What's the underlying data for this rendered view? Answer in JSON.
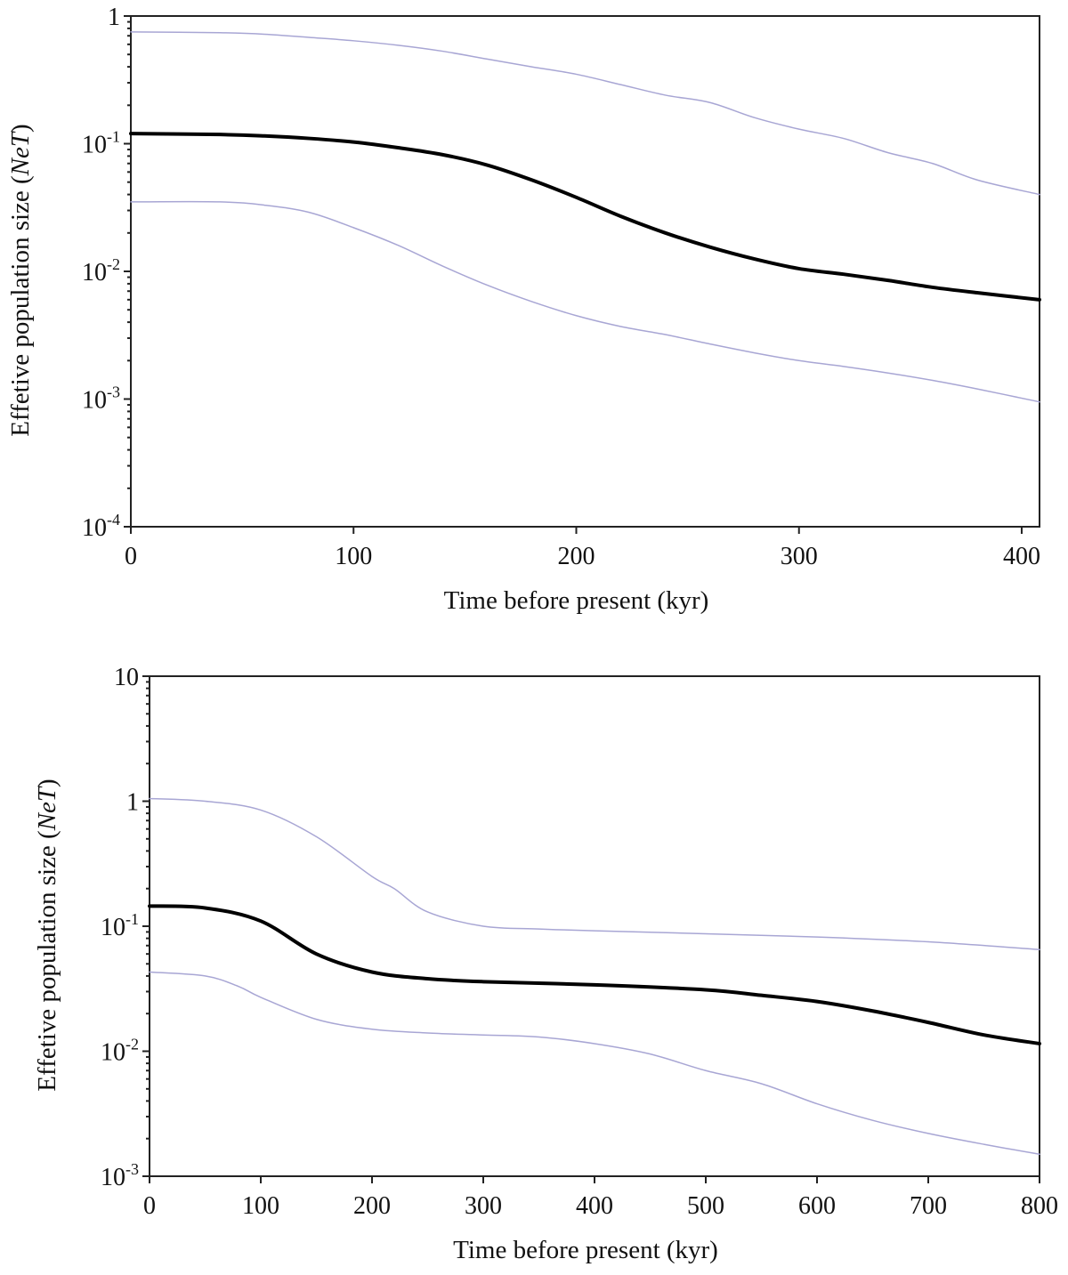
{
  "chart_data": [
    {
      "type": "line",
      "title": "",
      "xlabel": "Time before present (kyr)",
      "ylabel": "Effetive population size (",
      "ylabel_italic": "NeT",
      "ylabel_close": ")",
      "y_scale": "log",
      "xlim": [
        0,
        408
      ],
      "ylim": [
        0.0001,
        1
      ],
      "x_ticks": [
        0,
        100,
        200,
        300,
        400
      ],
      "x_tick_labels": [
        "0",
        "100",
        "200",
        "300",
        "400"
      ],
      "y_ticks": [
        {
          "value": 1,
          "base": "1",
          "exp": ""
        },
        {
          "value": 0.1,
          "base": "10",
          "exp": "-1"
        },
        {
          "value": 0.01,
          "base": "10",
          "exp": "-2"
        },
        {
          "value": 0.001,
          "base": "10",
          "exp": "-3"
        },
        {
          "value": 0.0001,
          "base": "10",
          "exp": "-4"
        }
      ],
      "grid": false,
      "series": [
        {
          "role": "upper",
          "color": "#a8a6d4",
          "width": 1.5,
          "x": [
            0,
            40,
            60,
            80,
            100,
            120,
            140,
            160,
            180,
            200,
            220,
            240,
            260,
            280,
            300,
            320,
            340,
            360,
            380,
            408
          ],
          "y": [
            0.75,
            0.74,
            0.72,
            0.68,
            0.64,
            0.59,
            0.53,
            0.46,
            0.4,
            0.35,
            0.29,
            0.24,
            0.21,
            0.16,
            0.13,
            0.11,
            0.085,
            0.07,
            0.052,
            0.04
          ]
        },
        {
          "role": "median",
          "color": "#000000",
          "width": 4,
          "x": [
            0,
            40,
            60,
            80,
            100,
            120,
            140,
            160,
            180,
            200,
            220,
            240,
            260,
            280,
            300,
            320,
            340,
            360,
            380,
            408
          ],
          "y": [
            0.12,
            0.118,
            0.115,
            0.11,
            0.103,
            0.093,
            0.082,
            0.068,
            0.052,
            0.038,
            0.027,
            0.02,
            0.0155,
            0.0125,
            0.0105,
            0.0095,
            0.0085,
            0.0075,
            0.0068,
            0.006
          ]
        },
        {
          "role": "lower",
          "color": "#a8a6d4",
          "width": 1.5,
          "x": [
            0,
            40,
            60,
            80,
            100,
            120,
            140,
            160,
            180,
            200,
            220,
            240,
            260,
            280,
            300,
            320,
            340,
            360,
            380,
            408
          ],
          "y": [
            0.035,
            0.035,
            0.033,
            0.029,
            0.022,
            0.016,
            0.011,
            0.0078,
            0.0058,
            0.0045,
            0.0037,
            0.0032,
            0.0027,
            0.0023,
            0.002,
            0.0018,
            0.0016,
            0.0014,
            0.0012,
            0.00095
          ]
        }
      ]
    },
    {
      "type": "line",
      "title": "",
      "xlabel": "Time before present (kyr)",
      "ylabel": "Effetive population size (",
      "ylabel_italic": "NeT",
      "ylabel_close": ")",
      "y_scale": "log",
      "xlim": [
        0,
        800
      ],
      "ylim": [
        0.001,
        10
      ],
      "x_ticks": [
        0,
        100,
        200,
        300,
        400,
        500,
        600,
        700,
        800
      ],
      "x_tick_labels": [
        "0",
        "100",
        "200",
        "300",
        "400",
        "500",
        "600",
        "700",
        "800"
      ],
      "y_ticks": [
        {
          "value": 10,
          "base": "10",
          "exp": ""
        },
        {
          "value": 1,
          "base": "1",
          "exp": ""
        },
        {
          "value": 0.1,
          "base": "10",
          "exp": "-1"
        },
        {
          "value": 0.01,
          "base": "10",
          "exp": "-2"
        },
        {
          "value": 0.001,
          "base": "10",
          "exp": "-3"
        }
      ],
      "grid": false,
      "series": [
        {
          "role": "upper",
          "color": "#a8a6d4",
          "width": 1.5,
          "x": [
            0,
            50,
            100,
            150,
            200,
            220,
            250,
            300,
            350,
            400,
            500,
            600,
            700,
            800
          ],
          "y": [
            1.05,
            1.0,
            0.85,
            0.52,
            0.25,
            0.2,
            0.13,
            0.1,
            0.095,
            0.092,
            0.087,
            0.082,
            0.075,
            0.065
          ]
        },
        {
          "role": "median",
          "color": "#000000",
          "width": 4,
          "x": [
            0,
            50,
            100,
            150,
            200,
            250,
            300,
            400,
            500,
            550,
            600,
            650,
            700,
            750,
            800
          ],
          "y": [
            0.145,
            0.14,
            0.11,
            0.06,
            0.043,
            0.038,
            0.036,
            0.034,
            0.031,
            0.028,
            0.025,
            0.021,
            0.017,
            0.0135,
            0.0115
          ]
        },
        {
          "role": "lower",
          "color": "#a8a6d4",
          "width": 1.5,
          "x": [
            0,
            50,
            80,
            100,
            150,
            200,
            250,
            300,
            350,
            400,
            450,
            500,
            550,
            600,
            650,
            700,
            750,
            800
          ],
          "y": [
            0.043,
            0.04,
            0.033,
            0.027,
            0.018,
            0.015,
            0.014,
            0.0135,
            0.013,
            0.0115,
            0.0095,
            0.007,
            0.0055,
            0.0038,
            0.0028,
            0.0022,
            0.0018,
            0.0015
          ]
        }
      ]
    }
  ]
}
